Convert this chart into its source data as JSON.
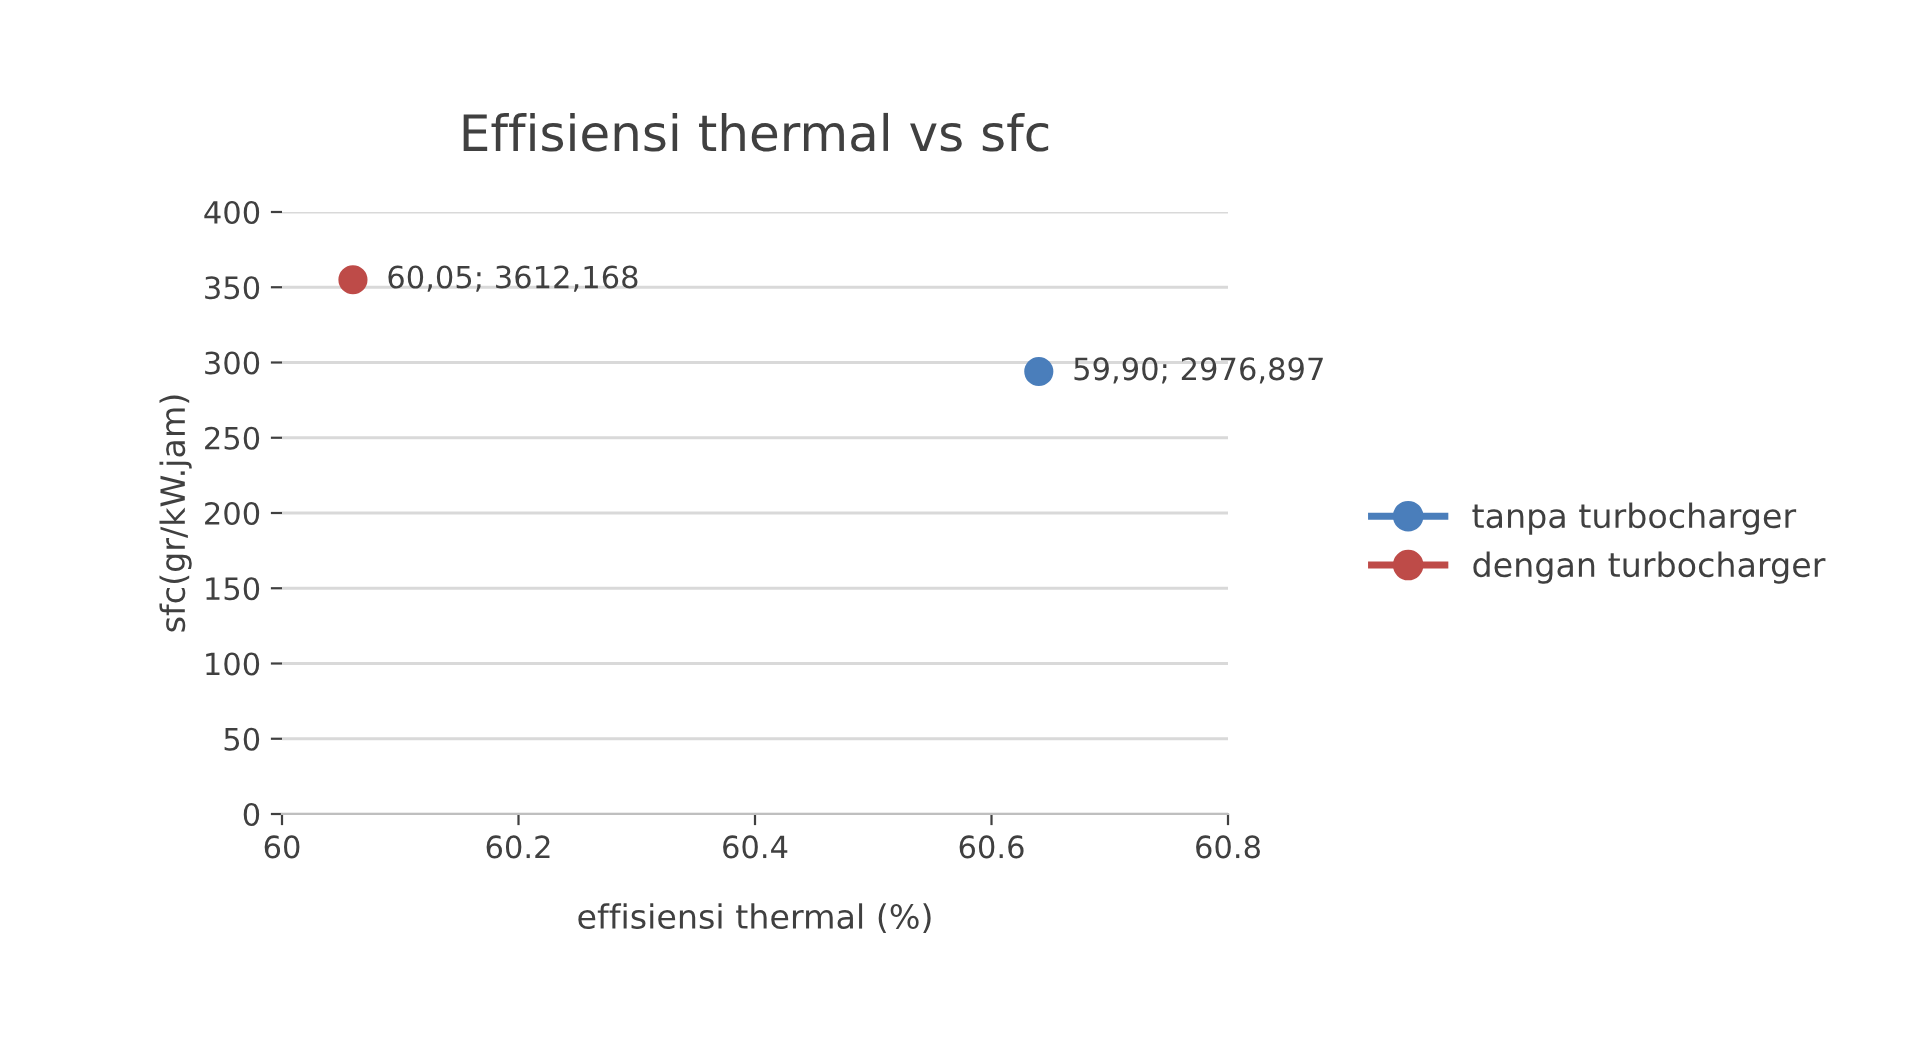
{
  "chart_data": {
    "type": "scatter",
    "title": "Effisiensi thermal vs sfc",
    "xlabel": "effisiensi thermal (%)",
    "ylabel": "sfc(gr/kW.jam)",
    "series": [
      {
        "name": "tanpa turbocharger",
        "color": "#4a7ebb",
        "x": [
          60.64
        ],
        "values": [
          294
        ],
        "value_labels": [
          "59,90; 2976,897"
        ]
      },
      {
        "name": "dengan turbocharger",
        "color": "#be4b48",
        "x": [
          60.06
        ],
        "values": [
          355
        ],
        "value_labels": [
          "60,05; 3612,168"
        ]
      }
    ],
    "xlim": [
      60,
      60.8
    ],
    "xticks": [
      60,
      60.2,
      60.4,
      60.6,
      60.8
    ],
    "ylim": [
      0,
      400
    ],
    "yticks": [
      0,
      50,
      100,
      150,
      200,
      250,
      300,
      350,
      400
    ],
    "grid": "y",
    "legend": "right",
    "marker": "circle"
  }
}
